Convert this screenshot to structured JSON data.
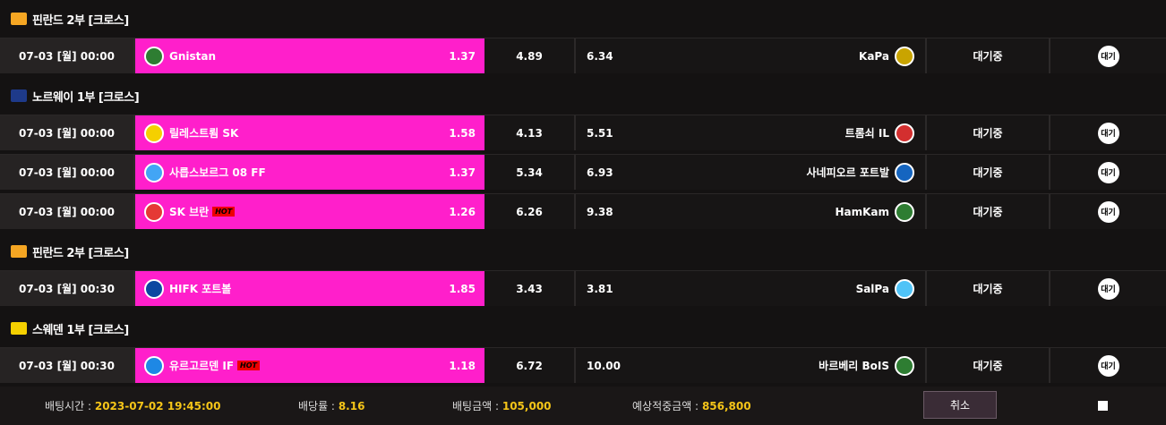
{
  "groups": [
    {
      "league": "핀란드 2부 [크로스]",
      "icon": "finland-flag-icon",
      "icon_color": "#f5a623",
      "matches": [
        {
          "time": "07-03 [월] 00:00",
          "home": "Gnistan",
          "home_logo": "#2e7d32",
          "hot": false,
          "home_odds": "1.37",
          "draw_odds": "4.89",
          "away_odds": "6.34",
          "away": "KaPa",
          "away_logo": "#c9a400",
          "status": "대기중",
          "action": "대기"
        }
      ]
    },
    {
      "league": "노르웨이 1부 [크로스]",
      "icon": "norway-league-icon",
      "icon_color": "#1e3a8a",
      "matches": [
        {
          "time": "07-03 [월] 00:00",
          "home": "릴레스트룀 SK",
          "home_logo": "#f5d000",
          "hot": false,
          "home_odds": "1.58",
          "draw_odds": "4.13",
          "away_odds": "5.51",
          "away": "트롬쇠 IL",
          "away_logo": "#d32f2f",
          "status": "대기중",
          "action": "대기"
        },
        {
          "time": "07-03 [월] 00:00",
          "home": "사릅스보르그 08 FF",
          "home_logo": "#42a5f5",
          "hot": false,
          "home_odds": "1.37",
          "draw_odds": "5.34",
          "away_odds": "6.93",
          "away": "사네피오르 포트발",
          "away_logo": "#1565c0",
          "status": "대기중",
          "action": "대기"
        },
        {
          "time": "07-03 [월] 00:00",
          "home": "SK 브란",
          "home_logo": "#e53935",
          "hot": true,
          "home_odds": "1.26",
          "draw_odds": "6.26",
          "away_odds": "9.38",
          "away": "HamKam",
          "away_logo": "#2e7d32",
          "status": "대기중",
          "action": "대기"
        }
      ]
    },
    {
      "league": "핀란드 2부 [크로스]",
      "icon": "finland-flag-icon",
      "icon_color": "#f5a623",
      "matches": [
        {
          "time": "07-03 [월] 00:30",
          "home": "HIFK 포트볼",
          "home_logo": "#0d47a1",
          "hot": false,
          "home_odds": "1.85",
          "draw_odds": "3.43",
          "away_odds": "3.81",
          "away": "SalPa",
          "away_logo": "#4fc3f7",
          "status": "대기중",
          "action": "대기"
        }
      ]
    },
    {
      "league": "스웨덴 1부 [크로스]",
      "icon": "sweden-league-icon",
      "icon_color": "#f5d000",
      "matches": [
        {
          "time": "07-03 [월] 00:30",
          "home": "유르고르덴 IF",
          "home_logo": "#1e88e5",
          "hot": true,
          "home_odds": "1.18",
          "draw_odds": "6.72",
          "away_odds": "10.00",
          "away": "바르베리 BoIS",
          "away_logo": "#2e7d32",
          "status": "대기중",
          "action": "대기"
        }
      ]
    }
  ],
  "hot_label": "HOT",
  "footer": {
    "bet_time_label": "배팅시간 :",
    "bet_time": "2023-07-02 19:45:00",
    "odds_label": "배당률 :",
    "odds": "8.16",
    "amount_label": "배팅금액 :",
    "amount": "105,000",
    "expected_label": "예상적중금액 :",
    "expected": "856,800",
    "cancel": "취소"
  }
}
